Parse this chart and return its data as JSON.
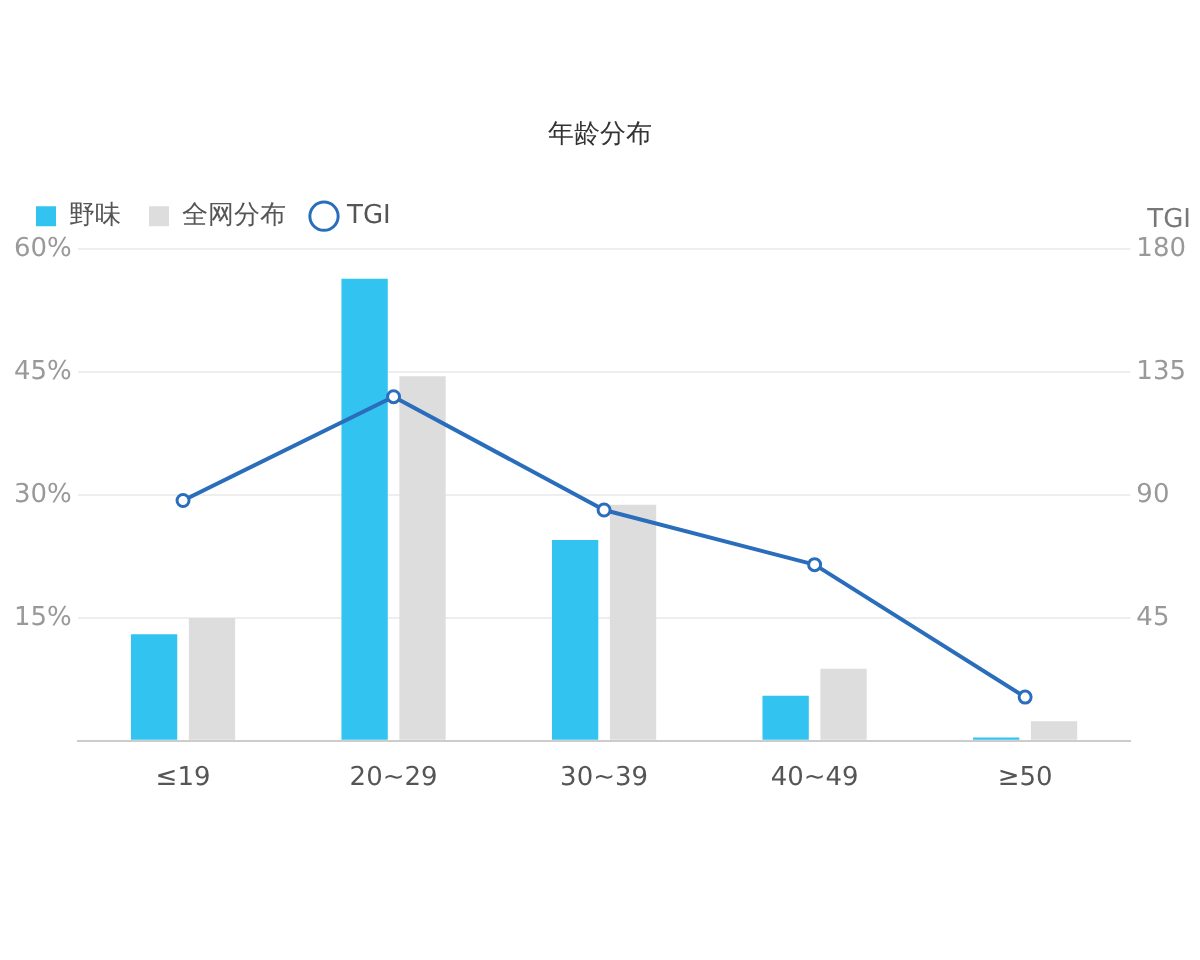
{
  "chart_data": {
    "type": "bar",
    "title": "年龄分布",
    "y2label": "TGI",
    "categories": [
      "≤19",
      "20~29",
      "30~39",
      "40~49",
      "≥50"
    ],
    "series": [
      {
        "name": "野味",
        "color": "#33c3f0",
        "values": [
          13,
          56.4,
          24.5,
          5.5,
          0.4
        ]
      },
      {
        "name": "全网分布",
        "color": "#dddddd",
        "values": [
          15,
          44.5,
          28.8,
          8.8,
          2.4
        ]
      },
      {
        "name": "TGI",
        "type": "line",
        "axis": "y2",
        "color": "#2a6ebb",
        "marker": "circle",
        "values": [
          88,
          126,
          84.5,
          64.5,
          16
        ]
      }
    ],
    "ylim": [
      0,
      60
    ],
    "yticks": [
      {
        "value": 0,
        "label": null
      },
      {
        "value": 15,
        "label": "15%"
      },
      {
        "value": 30,
        "label": "30%"
      },
      {
        "value": 45,
        "label": "45%"
      },
      {
        "value": 60,
        "label": "60%"
      }
    ],
    "y2lim": [
      0,
      180
    ],
    "y2ticks": [
      45,
      90,
      135,
      180
    ],
    "grid": "y",
    "legend": "top left"
  }
}
